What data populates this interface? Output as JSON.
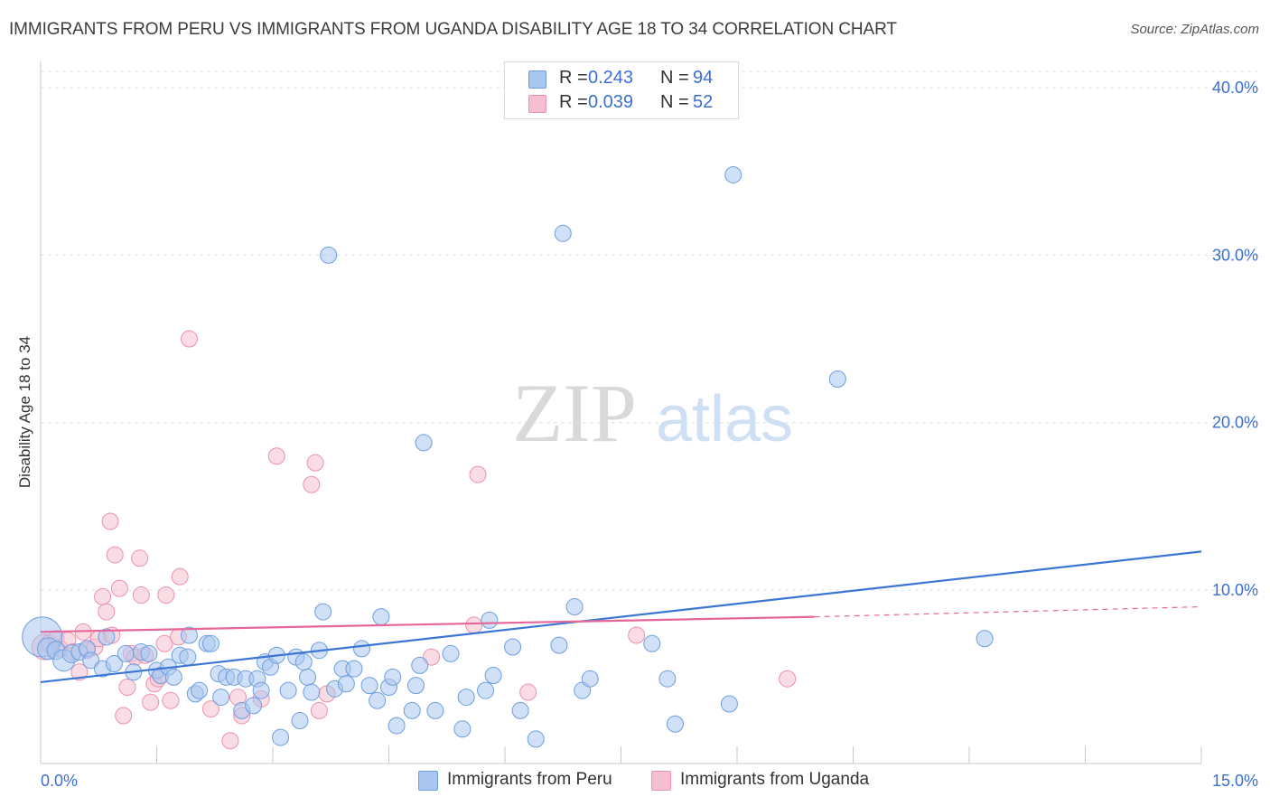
{
  "header": {
    "title": "IMMIGRANTS FROM PERU VS IMMIGRANTS FROM UGANDA DISABILITY AGE 18 TO 34 CORRELATION CHART",
    "source": "Source: ZipAtlas.com"
  },
  "watermark": {
    "part1": "ZIP",
    "part2": "atlas"
  },
  "legend": {
    "rows": [
      {
        "r_label": "R =",
        "r_value": "0.243",
        "n_label": "N =",
        "n_value": "94"
      },
      {
        "r_label": "R =",
        "r_value": "0.039",
        "n_label": "N =",
        "n_value": "52"
      }
    ]
  },
  "bottom_legend": {
    "items": [
      {
        "label": "Immigrants from Peru"
      },
      {
        "label": "Immigrants from Uganda"
      }
    ]
  },
  "colors": {
    "peru_fill": "#a9c6ef",
    "peru_stroke": "#6e9ee0",
    "peru_line": "#3a76d6",
    "uganda_fill": "#f6bfd0",
    "uganda_stroke": "#ec90ad",
    "uganda_line": "#e5679a",
    "tick_label": "#3a6fd1",
    "grid": "#e0e0e0"
  },
  "chart_data": {
    "type": "scatter",
    "title": "IMMIGRANTS FROM PERU VS IMMIGRANTS FROM UGANDA DISABILITY AGE 18 TO 34 CORRELATION CHART",
    "xlabel": "",
    "ylabel": "Disability Age 18 to 34",
    "xlim": [
      0,
      15
    ],
    "ylim": [
      0,
      40
    ],
    "x_tick_labels": [
      "0.0%",
      "15.0%"
    ],
    "y_ticks": [
      10,
      20,
      30,
      40
    ],
    "y_tick_labels": [
      "10.0%",
      "20.0%",
      "30.0%",
      "40.0%"
    ],
    "grid": true,
    "legend_position": "top-center",
    "series": [
      {
        "name": "Immigrants from Peru",
        "points": [
          [
            0.02,
            7.2,
            22
          ],
          [
            0.1,
            6.5,
            12
          ],
          [
            0.2,
            6.4,
            10
          ],
          [
            0.3,
            5.8,
            12
          ],
          [
            0.4,
            6.2,
            10
          ],
          [
            0.5,
            6.3,
            9
          ],
          [
            0.6,
            6.5,
            9
          ],
          [
            0.65,
            5.8,
            9
          ],
          [
            0.8,
            5.3,
            9
          ],
          [
            0.85,
            7.2,
            9
          ],
          [
            0.95,
            5.6,
            9
          ],
          [
            1.1,
            6.2,
            9
          ],
          [
            1.2,
            5.1,
            9
          ],
          [
            1.3,
            6.3,
            9
          ],
          [
            1.4,
            6.2,
            9
          ],
          [
            1.5,
            5.2,
            9
          ],
          [
            1.55,
            4.9,
            9
          ],
          [
            1.65,
            5.4,
            9
          ],
          [
            1.72,
            4.8,
            9
          ],
          [
            1.8,
            6.1,
            9
          ],
          [
            1.9,
            6.0,
            9
          ],
          [
            1.92,
            7.3,
            9
          ],
          [
            2.0,
            3.8,
            9
          ],
          [
            2.05,
            4.0,
            9
          ],
          [
            2.15,
            6.8,
            9
          ],
          [
            2.2,
            6.8,
            9
          ],
          [
            2.3,
            5.0,
            9
          ],
          [
            2.33,
            3.6,
            9
          ],
          [
            2.4,
            4.8,
            9
          ],
          [
            2.5,
            4.8,
            9
          ],
          [
            2.6,
            2.8,
            9
          ],
          [
            2.65,
            4.7,
            9
          ],
          [
            2.75,
            3.1,
            9
          ],
          [
            2.8,
            4.7,
            9
          ],
          [
            2.85,
            4.0,
            9
          ],
          [
            2.9,
            5.7,
            9
          ],
          [
            2.97,
            5.4,
            9
          ],
          [
            3.05,
            6.1,
            9
          ],
          [
            3.1,
            1.2,
            9
          ],
          [
            3.2,
            4.0,
            9
          ],
          [
            3.3,
            6.0,
            9
          ],
          [
            3.35,
            2.2,
            9
          ],
          [
            3.4,
            5.7,
            9
          ],
          [
            3.45,
            4.8,
            9
          ],
          [
            3.5,
            3.9,
            9
          ],
          [
            3.6,
            6.4,
            9
          ],
          [
            3.65,
            8.7,
            9
          ],
          [
            3.72,
            30.0,
            9
          ],
          [
            3.8,
            4.1,
            9
          ],
          [
            3.9,
            5.3,
            9
          ],
          [
            3.95,
            4.4,
            9
          ],
          [
            4.05,
            5.3,
            9
          ],
          [
            4.15,
            6.5,
            9
          ],
          [
            4.25,
            4.3,
            9
          ],
          [
            4.35,
            3.4,
            9
          ],
          [
            4.4,
            8.4,
            9
          ],
          [
            4.5,
            4.2,
            9
          ],
          [
            4.55,
            4.8,
            9
          ],
          [
            4.6,
            1.9,
            9
          ],
          [
            4.8,
            2.8,
            9
          ],
          [
            4.85,
            4.3,
            9
          ],
          [
            4.9,
            5.5,
            9
          ],
          [
            4.95,
            18.8,
            9
          ],
          [
            5.1,
            2.8,
            9
          ],
          [
            5.3,
            6.2,
            9
          ],
          [
            5.45,
            1.7,
            9
          ],
          [
            5.5,
            3.6,
            9
          ],
          [
            5.75,
            4.0,
            9
          ],
          [
            5.8,
            8.2,
            9
          ],
          [
            5.85,
            4.9,
            9
          ],
          [
            6.1,
            6.6,
            9
          ],
          [
            6.2,
            2.8,
            9
          ],
          [
            6.4,
            1.1,
            9
          ],
          [
            6.7,
            6.7,
            9
          ],
          [
            6.75,
            31.3,
            9
          ],
          [
            6.9,
            9.0,
            9
          ],
          [
            7.0,
            4.0,
            9
          ],
          [
            7.1,
            4.7,
            9
          ],
          [
            7.9,
            6.8,
            9
          ],
          [
            8.1,
            4.7,
            9
          ],
          [
            8.2,
            2.0,
            9
          ],
          [
            8.9,
            3.2,
            9
          ],
          [
            8.95,
            34.8,
            9
          ],
          [
            10.3,
            22.6,
            9
          ],
          [
            12.2,
            7.1,
            9
          ]
        ],
        "trend": {
          "x": [
            0,
            15
          ],
          "y": [
            4.5,
            12.3
          ]
        }
      },
      {
        "name": "Immigrants from Uganda",
        "points": [
          [
            0.05,
            6.6,
            14
          ],
          [
            0.12,
            6.8,
            10
          ],
          [
            0.2,
            7.1,
            9
          ],
          [
            0.25,
            6.5,
            9
          ],
          [
            0.35,
            7.0,
            9
          ],
          [
            0.42,
            6.3,
            9
          ],
          [
            0.5,
            5.1,
            9
          ],
          [
            0.55,
            7.5,
            9
          ],
          [
            0.6,
            6.4,
            9
          ],
          [
            0.7,
            6.6,
            9
          ],
          [
            0.75,
            7.1,
            9
          ],
          [
            0.8,
            9.6,
            9
          ],
          [
            0.85,
            8.7,
            9
          ],
          [
            0.9,
            14.1,
            9
          ],
          [
            0.92,
            7.3,
            9
          ],
          [
            0.96,
            12.1,
            9
          ],
          [
            1.02,
            10.1,
            9
          ],
          [
            1.07,
            2.5,
            9
          ],
          [
            1.12,
            4.2,
            9
          ],
          [
            1.17,
            6.2,
            9
          ],
          [
            1.22,
            6.0,
            9
          ],
          [
            1.28,
            11.9,
            9
          ],
          [
            1.3,
            9.7,
            9
          ],
          [
            1.35,
            6.1,
            9
          ],
          [
            1.42,
            3.3,
            9
          ],
          [
            1.47,
            4.4,
            9
          ],
          [
            1.52,
            4.7,
            9
          ],
          [
            1.6,
            6.8,
            9
          ],
          [
            1.62,
            9.7,
            9
          ],
          [
            1.68,
            3.4,
            9
          ],
          [
            1.78,
            7.2,
            9
          ],
          [
            1.8,
            10.8,
            9
          ],
          [
            1.92,
            25.0,
            9
          ],
          [
            2.2,
            2.9,
            9
          ],
          [
            2.45,
            1.0,
            9
          ],
          [
            2.55,
            3.6,
            9
          ],
          [
            2.6,
            2.5,
            9
          ],
          [
            2.85,
            3.5,
            9
          ],
          [
            3.05,
            18.0,
            9
          ],
          [
            3.5,
            16.3,
            9
          ],
          [
            3.55,
            17.6,
            9
          ],
          [
            3.6,
            2.8,
            9
          ],
          [
            3.7,
            3.8,
            9
          ],
          [
            5.05,
            6.0,
            9
          ],
          [
            5.6,
            7.9,
            9
          ],
          [
            5.65,
            16.9,
            9
          ],
          [
            6.3,
            3.9,
            9
          ],
          [
            7.7,
            7.3,
            9
          ],
          [
            9.65,
            4.7,
            9
          ]
        ],
        "trend": {
          "x": [
            0,
            10
          ],
          "y": [
            7.5,
            8.4
          ]
        },
        "trend_extension": {
          "x": [
            10,
            15
          ],
          "y": [
            8.4,
            9.0
          ]
        }
      }
    ]
  }
}
